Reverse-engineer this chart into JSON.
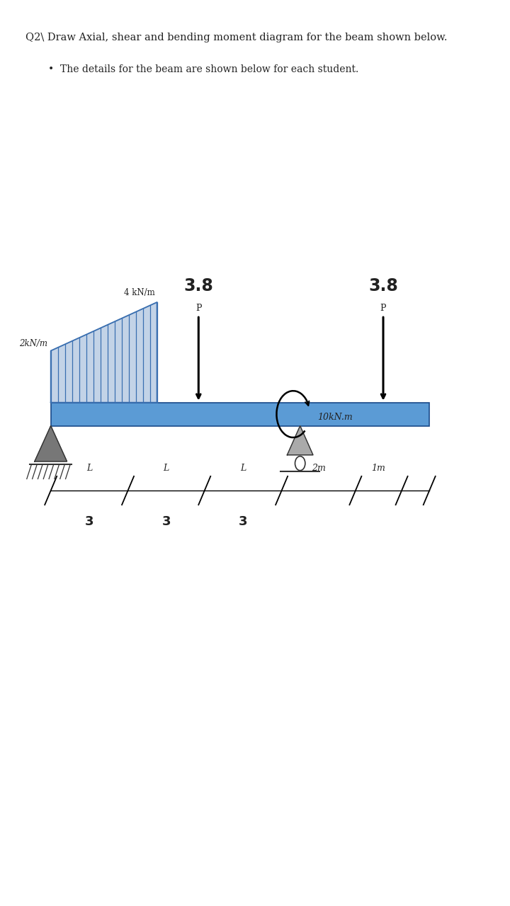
{
  "title_line1": "Q2\\ Draw Axial, shear and bending moment diagram for the beam shown below.",
  "title_line2": "The details for the beam are shown below for each student.",
  "bg_color": "#ffffff",
  "beam_color": "#5b9bd5",
  "dist_load_color": "#3a6fb0",
  "text_color": "#222222",
  "point_load_1_label": "3.8",
  "point_load_1_sublabel": "P",
  "point_load_2_label": "3.8",
  "point_load_2_sublabel": "P",
  "dist_load_label_left": "2kN/m",
  "dist_load_label_right": "4 kN/m",
  "moment_label": "10kN.m",
  "seg_boundaries": [
    1.1,
    2.77,
    4.43,
    6.1,
    7.7,
    8.7,
    9.3
  ],
  "seg_labels": [
    "L",
    "L",
    "L",
    "2m",
    "1m"
  ],
  "seg_numbers": [
    "3",
    "3",
    "3"
  ],
  "seg_numbers_gaps": [
    0,
    1,
    2
  ]
}
